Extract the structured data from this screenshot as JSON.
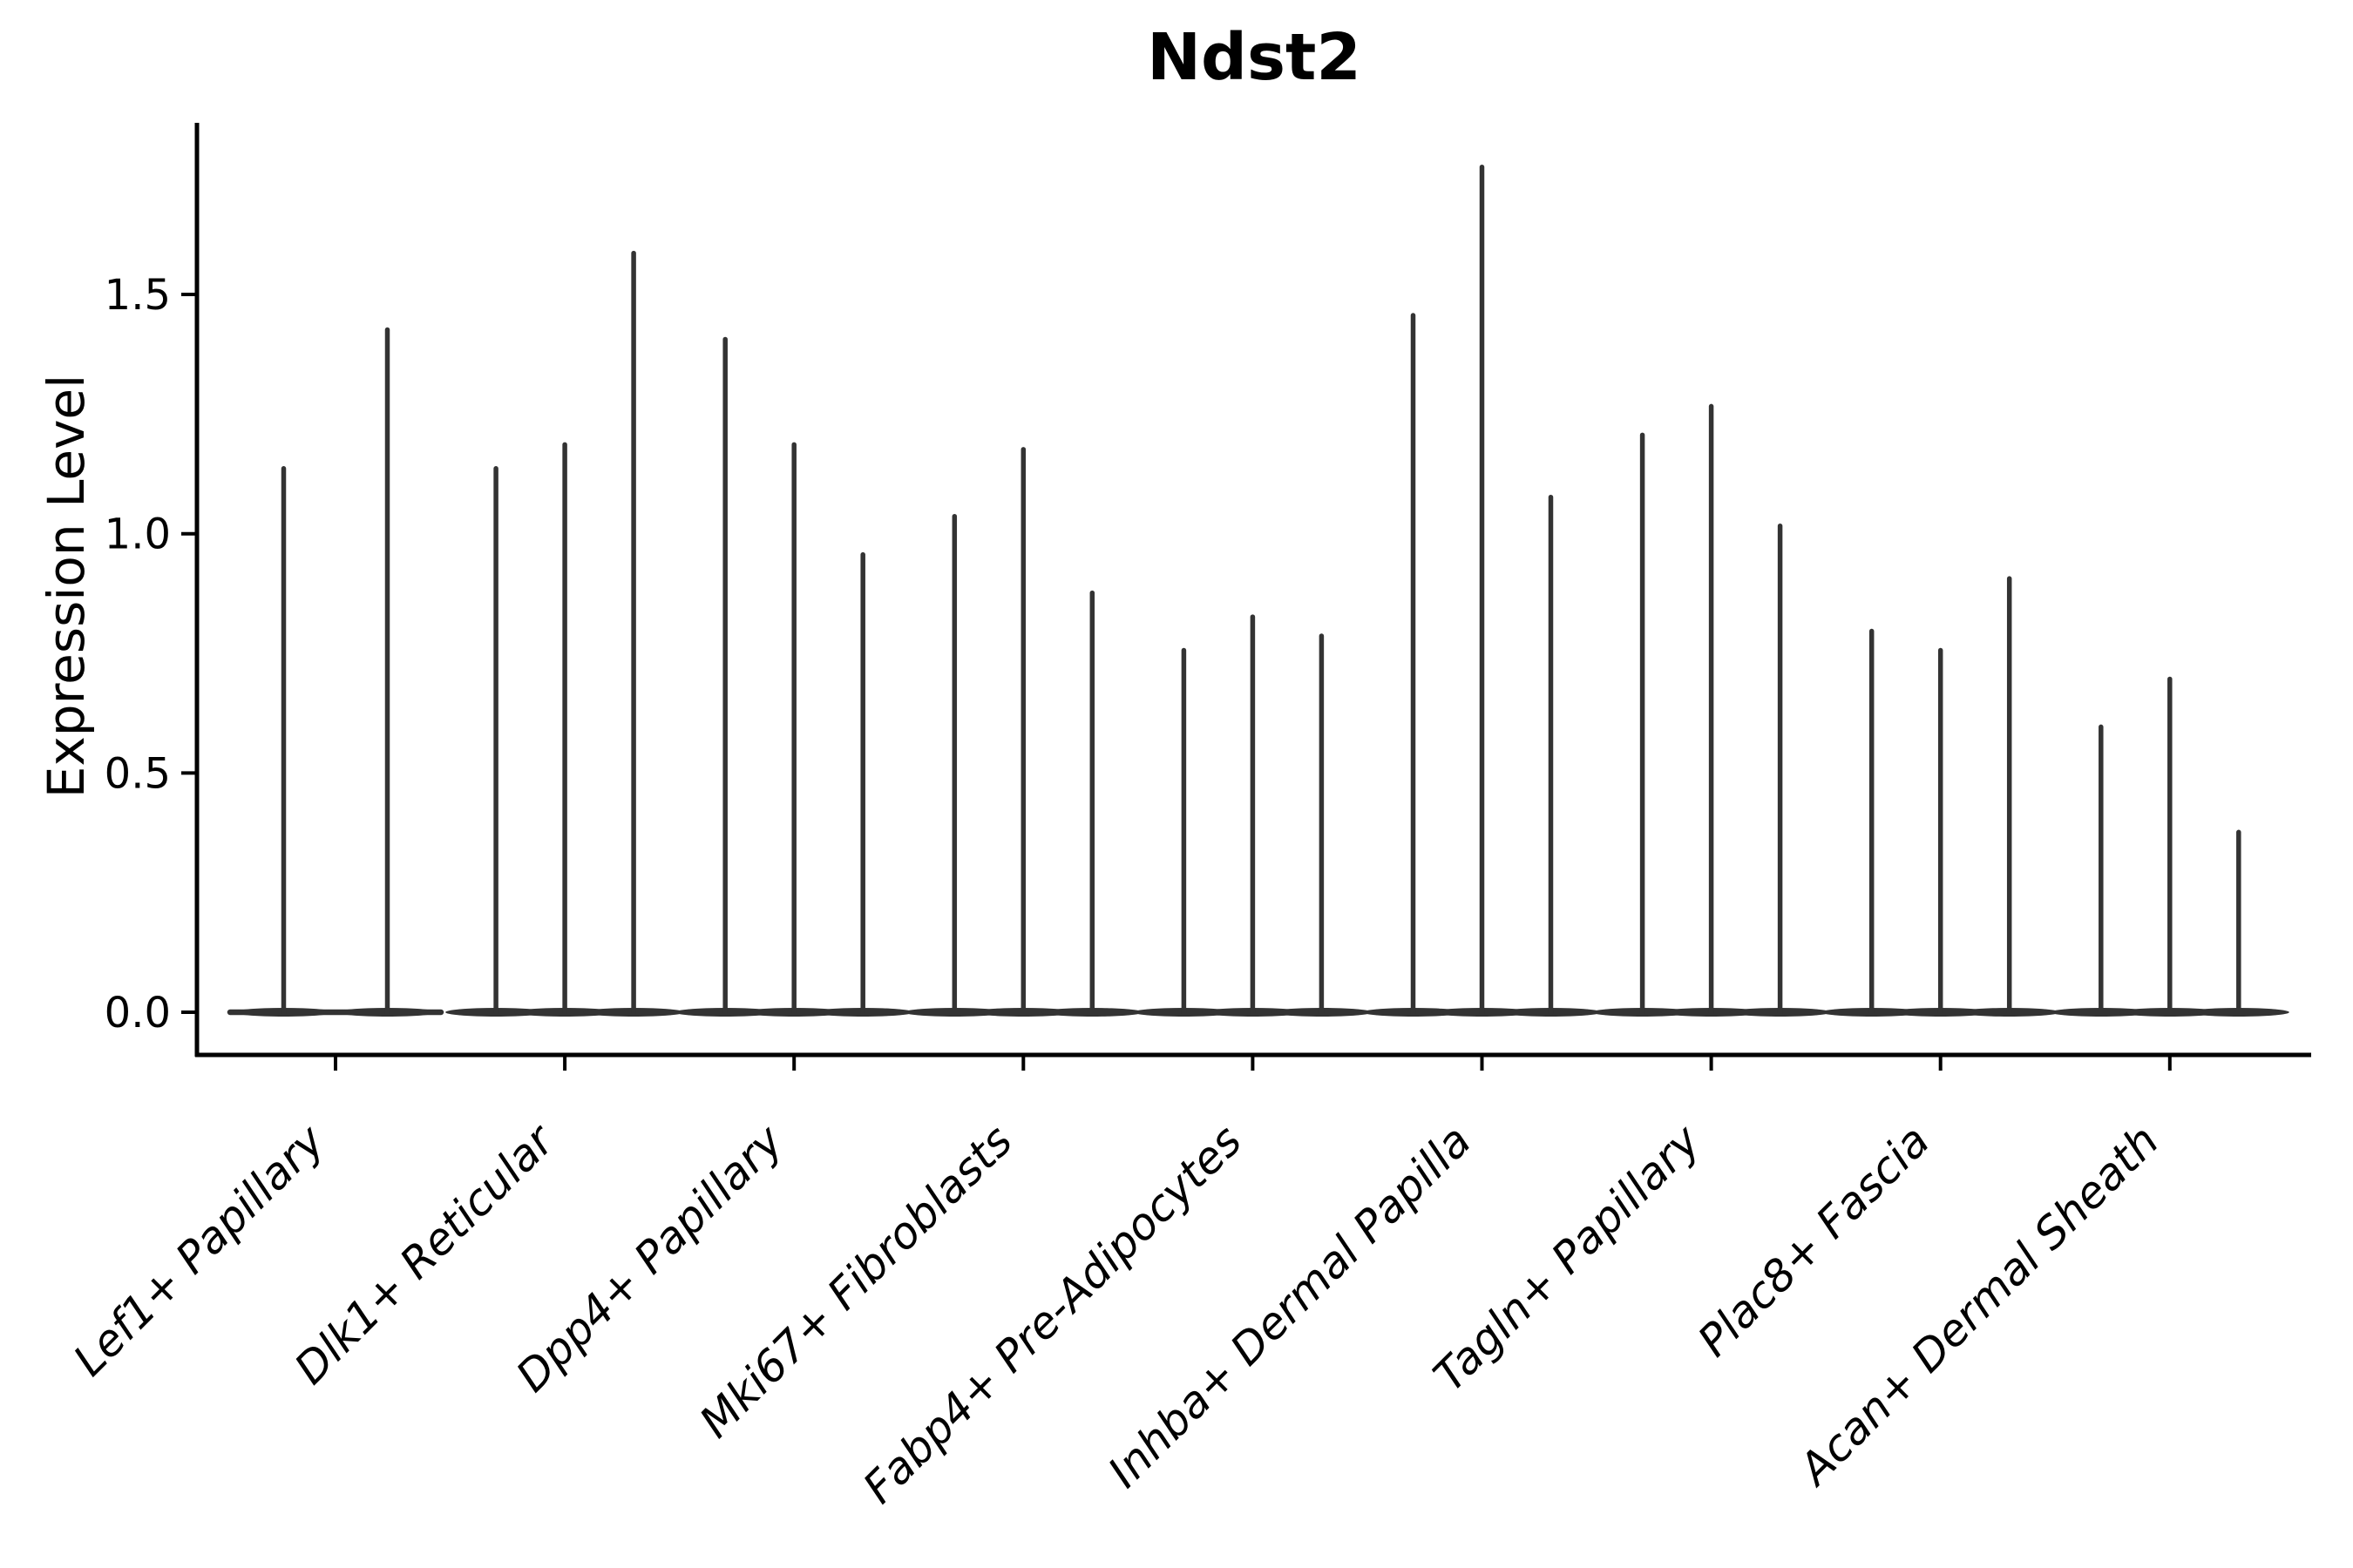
{
  "page": {
    "background": "#ffffff"
  },
  "chart_data": {
    "type": "violin",
    "title": "Ndst2",
    "xlabel": "",
    "ylabel": "Expression Level",
    "ylim": [
      -0.09,
      1.86
    ],
    "y_ticks": [
      0.0,
      0.5,
      1.0,
      1.5
    ],
    "y_tick_labels": [
      "0.0",
      "0.5",
      "1.0",
      "1.5"
    ],
    "grid": false,
    "legend_position": "none",
    "violin_shape": "collapsed-at-zero-with-spike-to-max",
    "categories": [
      "Lef1+ Papillary",
      "Dlk1+ Reticular",
      "Dpp4+ Papillary",
      "Mki67+ Fibroblasts",
      "Fabp4+ Pre-Adipocytes",
      "Inhba+ Dermal Papilla",
      "Tagln+ Papillary",
      "Plac8+ Fascia",
      "Acan+ Dermal Sheath"
    ],
    "groups": [
      {
        "label": "Lef1+ Papillary",
        "spike_maxima": [
          1.14,
          1.43
        ]
      },
      {
        "label": "Dlk1+ Reticular",
        "spike_maxima": [
          1.14,
          1.19,
          1.59
        ]
      },
      {
        "label": "Dpp4+ Papillary",
        "spike_maxima": [
          1.41,
          1.19,
          0.96
        ]
      },
      {
        "label": "Mki67+ Fibroblasts",
        "spike_maxima": [
          1.04,
          1.18,
          0.88
        ]
      },
      {
        "label": "Fabp4+ Pre-Adipocytes",
        "spike_maxima": [
          0.76,
          0.83,
          0.79
        ]
      },
      {
        "label": "Inhba+ Dermal Papilla",
        "spike_maxima": [
          1.46,
          1.77,
          1.08
        ]
      },
      {
        "label": "Tagln+ Papillary",
        "spike_maxima": [
          1.21,
          1.27,
          1.02
        ]
      },
      {
        "label": "Plac8+ Fascia",
        "spike_maxima": [
          0.8,
          0.76,
          0.91
        ]
      },
      {
        "label": "Acan+ Dermal Sheath",
        "spike_maxima": [
          0.6,
          0.7,
          0.38
        ]
      }
    ],
    "colors": {
      "violin": "#333333",
      "axis": "#000000",
      "text": "#000000",
      "background": "#ffffff"
    }
  }
}
